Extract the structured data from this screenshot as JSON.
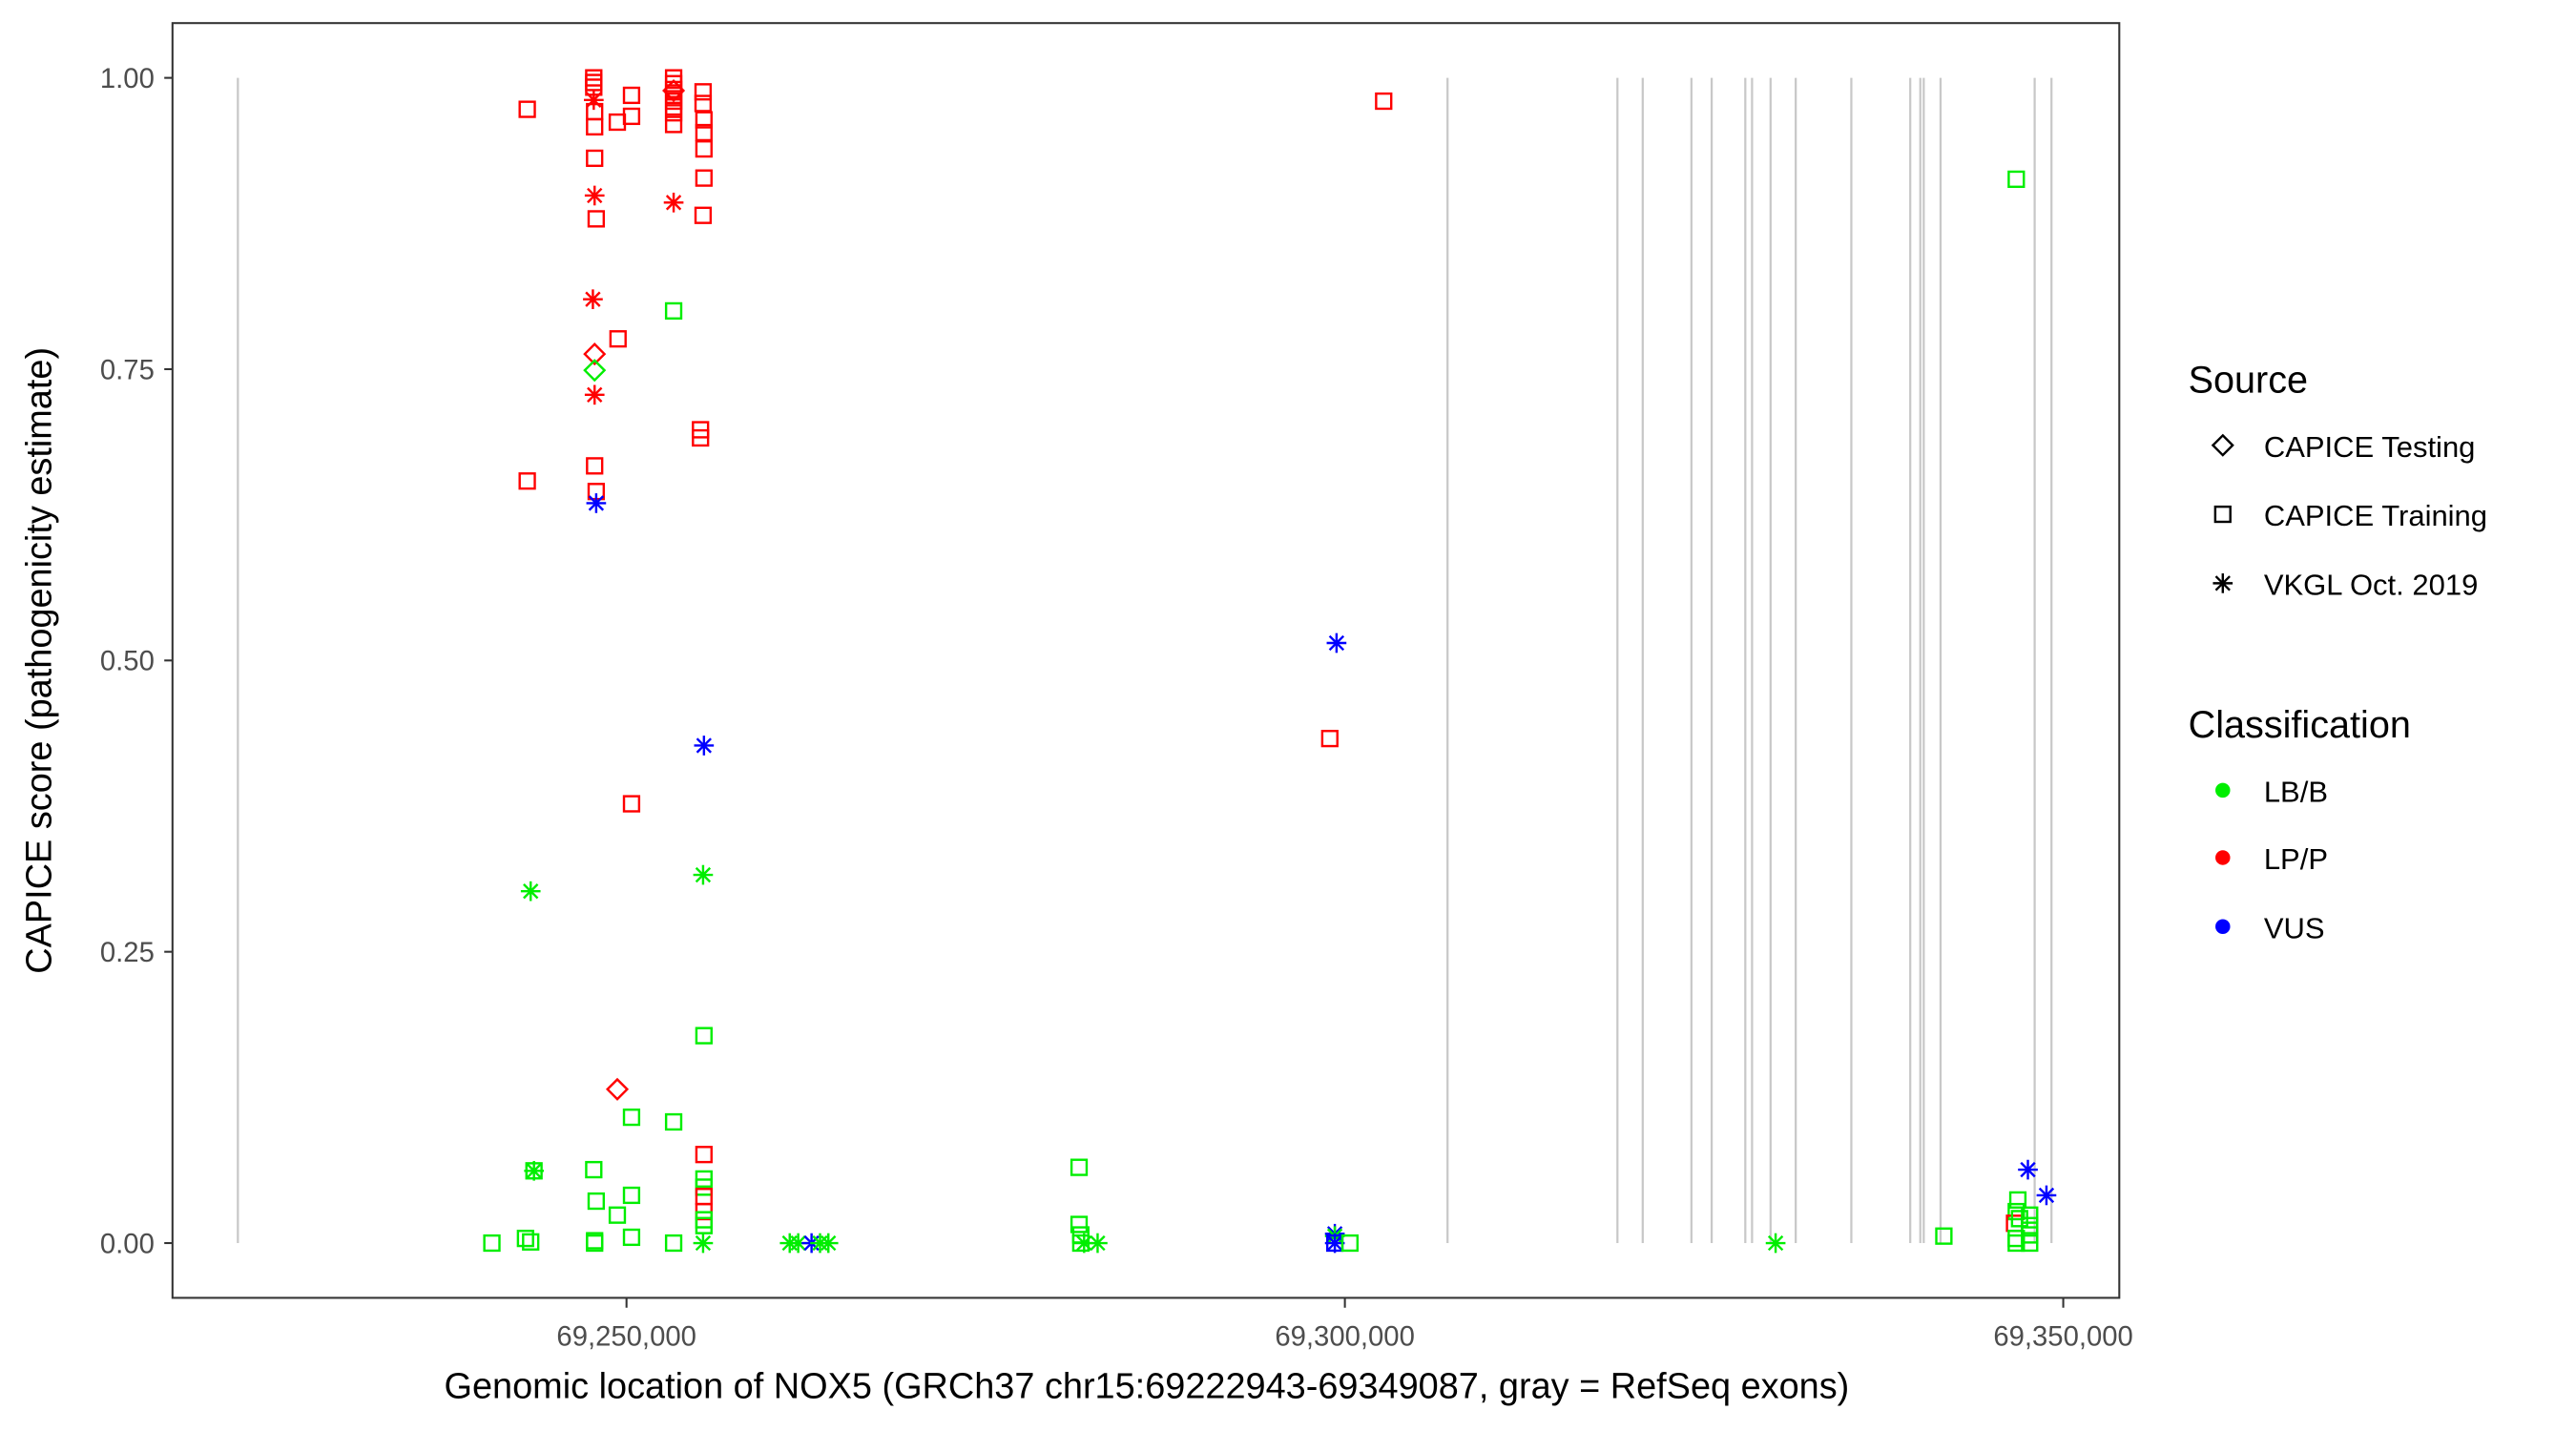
{
  "chart_data": {
    "type": "scatter",
    "xlabel": "Genomic location of NOX5 (GRCh37 chr15:69222943-69349087, gray = RefSeq exons)",
    "ylabel": "CAPICE score (pathogenicity estimate)",
    "xlim": [
      69218400,
      69353900
    ],
    "ylim": [
      -0.047,
      1.047
    ],
    "x_ticks": [
      69250000,
      69300000,
      69350000
    ],
    "x_tick_labels": [
      "69,250,000",
      "69,300,000",
      "69,350,000"
    ],
    "y_ticks": [
      0,
      0.25,
      0.5,
      0.75,
      1.0
    ],
    "y_tick_labels": [
      "0.00",
      "0.25",
      "0.50",
      "0.75",
      "1.00"
    ],
    "grid": false,
    "exon_positions": [
      69222950,
      69307145,
      69318970,
      69320730,
      69324120,
      69325530,
      69327870,
      69328340,
      69329630,
      69331380,
      69335250,
      69339350,
      69340050,
      69340290,
      69341460,
      69348010,
      69349180
    ],
    "exon_color": "#c8c8c8",
    "legend": {
      "placement": "right",
      "source": {
        "title": "Source",
        "items": [
          {
            "key": "testing",
            "label": "CAPICE Testing",
            "shape": "diamond"
          },
          {
            "key": "training",
            "label": "CAPICE Training",
            "shape": "square"
          },
          {
            "key": "vkgl",
            "label": "VKGL Oct. 2019",
            "shape": "asterisk"
          }
        ]
      },
      "classification": {
        "title": "Classification",
        "items": [
          {
            "key": "LB/B",
            "label": "LB/B",
            "color": "#00ee00"
          },
          {
            "key": "LP/P",
            "label": "LP/P",
            "color": "#ff0000"
          },
          {
            "key": "VUS",
            "label": "VUS",
            "color": "#0000ff"
          }
        ]
      }
    },
    "point_fields": [
      "position",
      "score",
      "source",
      "classification"
    ],
    "points": [
      [
        69243090,
        0.973,
        "training",
        "LP/P"
      ],
      [
        69243090,
        0.654,
        "training",
        "LP/P"
      ],
      [
        69247720,
        1.0,
        "training",
        "LP/P"
      ],
      [
        69247720,
        0.996,
        "training",
        "LP/P"
      ],
      [
        69247720,
        0.992,
        "training",
        "LP/P"
      ],
      [
        69247720,
        0.981,
        "vkgl",
        "LP/P"
      ],
      [
        69247780,
        0.971,
        "training",
        "LP/P"
      ],
      [
        69247780,
        0.958,
        "training",
        "LP/P"
      ],
      [
        69247780,
        0.931,
        "training",
        "LP/P"
      ],
      [
        69247780,
        0.899,
        "vkgl",
        "LP/P"
      ],
      [
        69247890,
        0.879,
        "training",
        "LP/P"
      ],
      [
        69250350,
        0.985,
        "training",
        "LP/P"
      ],
      [
        69250350,
        0.967,
        "training",
        "LP/P"
      ],
      [
        69249360,
        0.962,
        "training",
        "LP/P"
      ],
      [
        69253280,
        1.0,
        "training",
        "LP/P"
      ],
      [
        69253280,
        0.995,
        "training",
        "LP/P"
      ],
      [
        69253280,
        0.99,
        "training",
        "LP/P"
      ],
      [
        69253280,
        0.989,
        "testing",
        "LP/P"
      ],
      [
        69253280,
        0.985,
        "training",
        "LP/P"
      ],
      [
        69253280,
        0.98,
        "training",
        "LP/P"
      ],
      [
        69253280,
        0.975,
        "training",
        "LP/P"
      ],
      [
        69253280,
        0.97,
        "training",
        "LP/P"
      ],
      [
        69253280,
        0.96,
        "training",
        "LP/P"
      ],
      [
        69253280,
        0.893,
        "vkgl",
        "LP/P"
      ],
      [
        69255330,
        0.988,
        "training",
        "LP/P"
      ],
      [
        69255330,
        0.978,
        "training",
        "LP/P"
      ],
      [
        69255390,
        0.964,
        "training",
        "LP/P"
      ],
      [
        69255390,
        0.953,
        "training",
        "LP/P"
      ],
      [
        69255390,
        0.939,
        "training",
        "LP/P"
      ],
      [
        69255390,
        0.914,
        "training",
        "LP/P"
      ],
      [
        69255330,
        0.882,
        "training",
        "LP/P"
      ],
      [
        69247660,
        0.81,
        "vkgl",
        "LP/P"
      ],
      [
        69249410,
        0.776,
        "training",
        "LP/P"
      ],
      [
        69247780,
        0.763,
        "testing",
        "LP/P"
      ],
      [
        69247780,
        0.749,
        "testing",
        "LB/B"
      ],
      [
        69247780,
        0.728,
        "vkgl",
        "LP/P"
      ],
      [
        69247780,
        0.667,
        "training",
        "LP/P"
      ],
      [
        69247890,
        0.645,
        "training",
        "LP/P"
      ],
      [
        69247890,
        0.635,
        "vkgl",
        "VUS"
      ],
      [
        69253280,
        0.8,
        "training",
        "LB/B"
      ],
      [
        69255150,
        0.698,
        "training",
        "LP/P"
      ],
      [
        69255150,
        0.691,
        "training",
        "LP/P"
      ],
      [
        69255390,
        0.427,
        "vkgl",
        "VUS"
      ],
      [
        69250350,
        0.377,
        "training",
        "LP/P"
      ],
      [
        69243330,
        0.302,
        "vkgl",
        "LB/B"
      ],
      [
        69255330,
        0.316,
        "vkgl",
        "LB/B"
      ],
      [
        69302700,
        0.98,
        "training",
        "LP/P"
      ],
      [
        69298950,
        0.433,
        "training",
        "LP/P"
      ],
      [
        69299420,
        0.515,
        "vkgl",
        "VUS"
      ],
      [
        69346730,
        0.913,
        "training",
        "LB/B"
      ],
      [
        69255390,
        0.178,
        "training",
        "LB/B"
      ],
      [
        69249360,
        0.132,
        "testing",
        "LP/P"
      ],
      [
        69250350,
        0.108,
        "training",
        "LB/B"
      ],
      [
        69253280,
        0.104,
        "training",
        "LB/B"
      ],
      [
        69255390,
        0.076,
        "training",
        "LP/P"
      ],
      [
        69243560,
        0.062,
        "training",
        "LB/B"
      ],
      [
        69243560,
        0.062,
        "vkgl",
        "LB/B"
      ],
      [
        69247720,
        0.063,
        "training",
        "LB/B"
      ],
      [
        69255390,
        0.055,
        "training",
        "LB/B"
      ],
      [
        69255390,
        0.048,
        "training",
        "LB/B"
      ],
      [
        69255390,
        0.04,
        "training",
        "LP/P"
      ],
      [
        69247890,
        0.036,
        "training",
        "LB/B"
      ],
      [
        69250350,
        0.041,
        "training",
        "LB/B"
      ],
      [
        69249360,
        0.024,
        "training",
        "LB/B"
      ],
      [
        69255390,
        0.027,
        "training",
        "LP/P"
      ],
      [
        69255390,
        0.02,
        "training",
        "LB/B"
      ],
      [
        69255390,
        0.015,
        "training",
        "LB/B"
      ],
      [
        69255330,
        0.0,
        "vkgl",
        "LB/B"
      ],
      [
        69240630,
        0.0,
        "training",
        "LB/B"
      ],
      [
        69242970,
        0.004,
        "training",
        "LB/B"
      ],
      [
        69243330,
        0.001,
        "training",
        "LB/B"
      ],
      [
        69247780,
        0.002,
        "training",
        "LB/B"
      ],
      [
        69247780,
        0.0,
        "training",
        "LB/B"
      ],
      [
        69250350,
        0.005,
        "training",
        "LB/B"
      ],
      [
        69253280,
        0.0,
        "training",
        "LB/B"
      ],
      [
        69261360,
        0.0,
        "vkgl",
        "LB/B"
      ],
      [
        69261950,
        0.0,
        "vkgl",
        "LB/B"
      ],
      [
        69262880,
        0.0,
        "vkgl",
        "VUS"
      ],
      [
        69263470,
        0.0,
        "vkgl",
        "LB/B"
      ],
      [
        69264050,
        0.0,
        "vkgl",
        "LB/B"
      ],
      [
        69281500,
        0.065,
        "training",
        "LB/B"
      ],
      [
        69281500,
        0.016,
        "training",
        "LB/B"
      ],
      [
        69281620,
        0.007,
        "training",
        "LB/B"
      ],
      [
        69281620,
        0.0,
        "training",
        "LB/B"
      ],
      [
        69281850,
        0.0,
        "vkgl",
        "LB/B"
      ],
      [
        69282790,
        0.0,
        "vkgl",
        "LB/B"
      ],
      [
        69299300,
        0.008,
        "vkgl",
        "VUS"
      ],
      [
        69299300,
        0.006,
        "vkgl",
        "LB/B"
      ],
      [
        69299300,
        0.0,
        "vkgl",
        "VUS"
      ],
      [
        69299300,
        0.0,
        "training",
        "VUS"
      ],
      [
        69300350,
        0.0,
        "training",
        "LB/B"
      ],
      [
        69329980,
        0.0,
        "vkgl",
        "LB/B"
      ],
      [
        69341690,
        0.006,
        "training",
        "LB/B"
      ],
      [
        69346840,
        0.037,
        "training",
        "LB/B"
      ],
      [
        69346730,
        0.027,
        "training",
        "LB/B"
      ],
      [
        69346610,
        0.017,
        "training",
        "LP/P"
      ],
      [
        69346960,
        0.021,
        "training",
        "LB/B"
      ],
      [
        69347660,
        0.024,
        "training",
        "LB/B"
      ],
      [
        69347660,
        0.015,
        "training",
        "LB/B"
      ],
      [
        69347660,
        0.007,
        "training",
        "LB/B"
      ],
      [
        69346730,
        0.004,
        "training",
        "LB/B"
      ],
      [
        69346730,
        0.0,
        "training",
        "LB/B"
      ],
      [
        69347660,
        0.0,
        "training",
        "LB/B"
      ],
      [
        69347540,
        0.063,
        "vkgl",
        "VUS"
      ],
      [
        69348830,
        0.041,
        "vkgl",
        "VUS"
      ]
    ]
  }
}
